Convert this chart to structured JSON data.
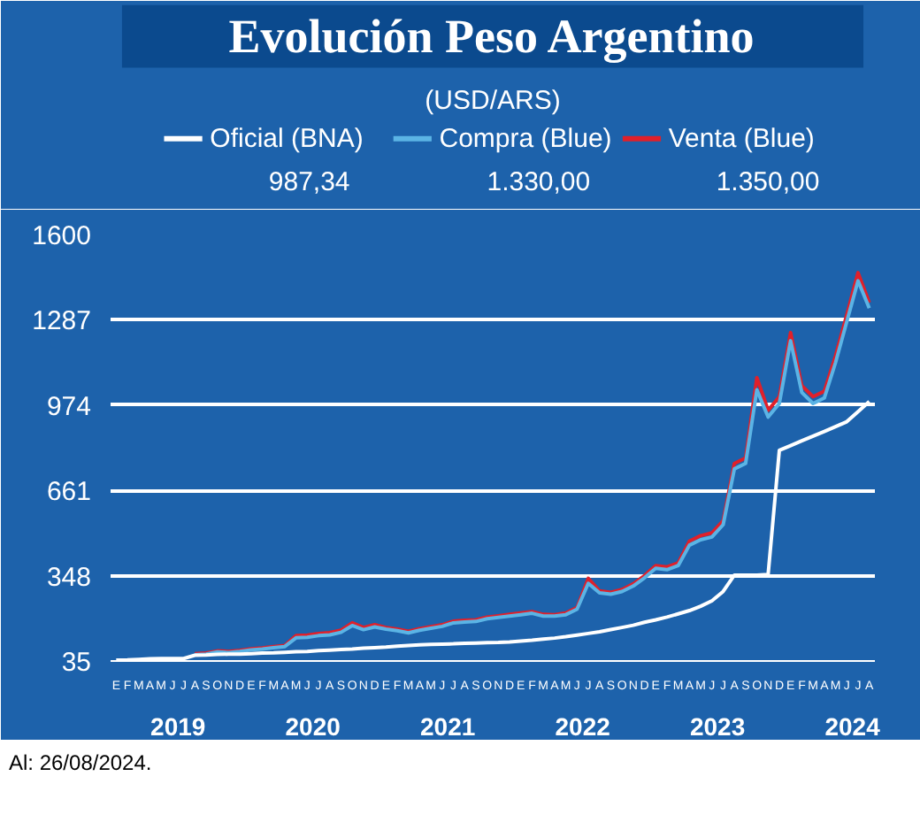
{
  "chart_data": {
    "type": "line",
    "title": "Evolución Peso Argentino",
    "subtitle": "(USD/ARS)",
    "categories": [
      "E",
      "F",
      "M",
      "A",
      "M",
      "J",
      "J",
      "A",
      "S",
      "O",
      "N",
      "D",
      "E",
      "F",
      "M",
      "A",
      "M",
      "J",
      "J",
      "A",
      "S",
      "O",
      "N",
      "D",
      "E",
      "F",
      "M",
      "A",
      "M",
      "J",
      "J",
      "A",
      "S",
      "O",
      "N",
      "D",
      "E",
      "F",
      "M",
      "A",
      "M",
      "J",
      "J",
      "A",
      "S",
      "O",
      "N",
      "D",
      "E",
      "F",
      "M",
      "A",
      "M",
      "J",
      "J",
      "A",
      "S",
      "O",
      "N",
      "D",
      "E",
      "F",
      "M",
      "A",
      "M",
      "J",
      "J",
      "A"
    ],
    "series": [
      {
        "name": "Oficial (BNA)",
        "color": "#ffffff",
        "values": [
          38,
          39,
          41,
          43,
          44,
          44,
          44,
          56,
          57,
          59,
          60,
          60,
          62,
          64,
          65,
          67,
          69,
          70,
          73,
          75,
          77,
          79,
          82,
          84,
          86,
          89,
          92,
          94,
          96,
          97,
          98,
          100,
          101,
          102,
          103,
          105,
          108,
          111,
          115,
          119,
          124,
          130,
          136,
          142,
          150,
          158,
          166,
          177,
          186,
          196,
          208,
          220,
          236,
          256,
          290,
          350,
          350,
          350,
          352,
          808,
          825,
          843,
          860,
          877,
          895,
          913,
          950,
          987
        ]
      },
      {
        "name": "Compra (Blue)",
        "color": "#5bb4e5",
        "values": [
          null,
          null,
          null,
          null,
          null,
          null,
          null,
          58,
          60,
          68,
          66,
          70,
          76,
          79,
          84,
          88,
          120,
          122,
          128,
          131,
          140,
          165,
          150,
          160,
          152,
          146,
          138,
          148,
          155,
          162,
          175,
          178,
          180,
          190,
          195,
          200,
          205,
          210,
          200,
          200,
          205,
          225,
          320,
          285,
          280,
          290,
          310,
          340,
          375,
          370,
          385,
          460,
          480,
          490,
          535,
          740,
          760,
          1030,
          930,
          980,
          1210,
          1020,
          980,
          1000,
          1130,
          1280,
          1430,
          1330
        ]
      },
      {
        "name": "Venta (Blue)",
        "color": "#e0202a",
        "values": [
          null,
          null,
          null,
          null,
          null,
          null,
          null,
          62,
          64,
          72,
          70,
          74,
          80,
          83,
          88,
          92,
          128,
          130,
          136,
          139,
          148,
          175,
          158,
          168,
          158,
          152,
          144,
          154,
          161,
          168,
          181,
          184,
          186,
          196,
          201,
          206,
          211,
          216,
          206,
          205,
          211,
          231,
          338,
          292,
          287,
          297,
          318,
          348,
          385,
          380,
          395,
          475,
          495,
          505,
          550,
          760,
          780,
          1075,
          955,
          1005,
          1240,
          1045,
          1005,
          1025,
          1155,
          1305,
          1460,
          1350
        ]
      }
    ],
    "ylim": [
      35,
      1600
    ],
    "yticks": [
      35,
      348,
      661,
      974,
      1287,
      1600
    ],
    "grid": "y",
    "legend": "top",
    "marker": "none",
    "line_style": "solid",
    "annotations": [
      "987,34",
      "1.330,00",
      "1.350,00",
      "2019",
      "2020",
      "2021",
      "2022",
      "2023",
      "2024",
      "Al: 26/08/2024."
    ]
  }
}
